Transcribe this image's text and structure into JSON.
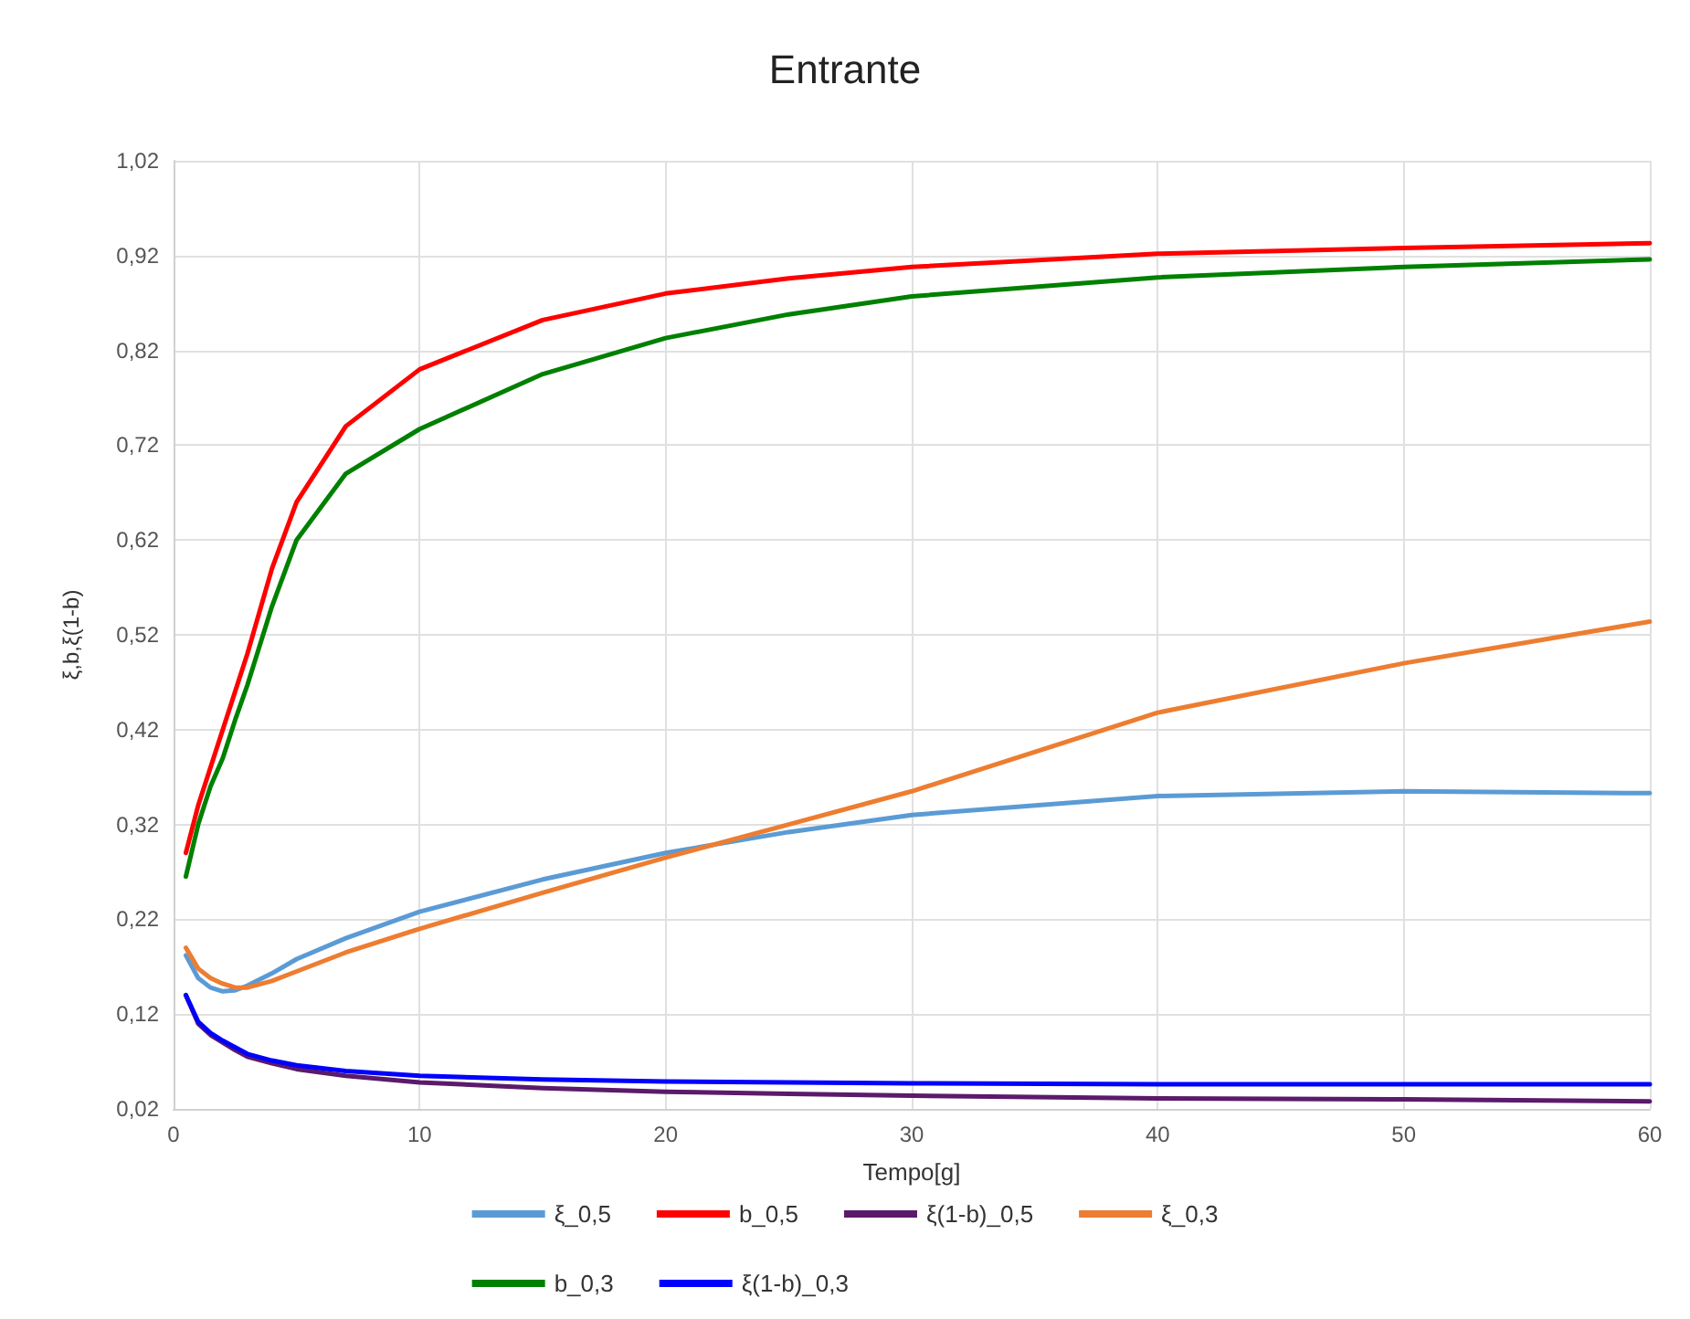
{
  "chart_data": {
    "type": "line",
    "title": "Entrante",
    "xlabel": "Tempo[g]",
    "ylabel": "ξ,b,ξ(1-b)",
    "x": [
      0.5,
      1,
      1.5,
      2,
      2.5,
      3,
      4,
      5,
      7,
      10,
      15,
      20,
      25,
      30,
      40,
      50,
      60
    ],
    "series": [
      {
        "name": "ξ_0,5",
        "color": "#5b9bd5",
        "values": [
          0.182,
          0.158,
          0.148,
          0.144,
          0.145,
          0.15,
          0.163,
          0.178,
          0.2,
          0.228,
          0.262,
          0.29,
          0.312,
          0.33,
          0.35,
          0.355,
          0.353
        ]
      },
      {
        "name": "b_0,5",
        "color": "#ff0000",
        "values": [
          0.29,
          0.34,
          0.38,
          0.42,
          0.46,
          0.5,
          0.59,
          0.66,
          0.74,
          0.8,
          0.852,
          0.88,
          0.896,
          0.908,
          0.922,
          0.928,
          0.933
        ]
      },
      {
        "name": "ξ(1-b)_0,5",
        "color": "#5b1a6b",
        "values": [
          0.14,
          0.11,
          0.098,
          0.09,
          0.082,
          0.075,
          0.068,
          0.062,
          0.055,
          0.048,
          0.042,
          0.038,
          0.036,
          0.034,
          0.031,
          0.03,
          0.028
        ]
      },
      {
        "name": "ξ_0,3",
        "color": "#ed7d31",
        "values": [
          0.19,
          0.168,
          0.158,
          0.152,
          0.148,
          0.148,
          0.155,
          0.165,
          0.185,
          0.21,
          0.248,
          0.285,
          0.32,
          0.355,
          0.438,
          0.49,
          0.534
        ]
      },
      {
        "name": "b_0,3",
        "color": "#008000",
        "values": [
          0.265,
          0.32,
          0.36,
          0.39,
          0.43,
          0.467,
          0.55,
          0.62,
          0.69,
          0.737,
          0.795,
          0.833,
          0.858,
          0.877,
          0.897,
          0.908,
          0.916
        ]
      },
      {
        "name": "ξ(1-b)_0,3",
        "color": "#0000ff",
        "values": [
          0.14,
          0.112,
          0.1,
          0.092,
          0.085,
          0.078,
          0.071,
          0.066,
          0.06,
          0.055,
          0.051,
          0.049,
          0.048,
          0.047,
          0.046,
          0.046,
          0.046
        ]
      }
    ],
    "xlim": [
      0,
      60
    ],
    "xticks": [
      0,
      10,
      20,
      30,
      40,
      50,
      60
    ],
    "ylim": [
      0.02,
      1.02
    ],
    "yticks": [
      {
        "value": 0.02,
        "label": "0,02"
      },
      {
        "value": 0.12,
        "label": "0,12"
      },
      {
        "value": 0.22,
        "label": "0,22"
      },
      {
        "value": 0.32,
        "label": "0,32"
      },
      {
        "value": 0.42,
        "label": "0,42"
      },
      {
        "value": 0.52,
        "label": "0,52"
      },
      {
        "value": 0.62,
        "label": "0,62"
      },
      {
        "value": 0.72,
        "label": "0,72"
      },
      {
        "value": 0.82,
        "label": "0,82"
      },
      {
        "value": 0.92,
        "label": "0,92"
      },
      {
        "value": 1.02,
        "label": "1,02"
      }
    ],
    "grid": true,
    "legend": "bottom",
    "marker": "none",
    "line_style": "solid"
  }
}
